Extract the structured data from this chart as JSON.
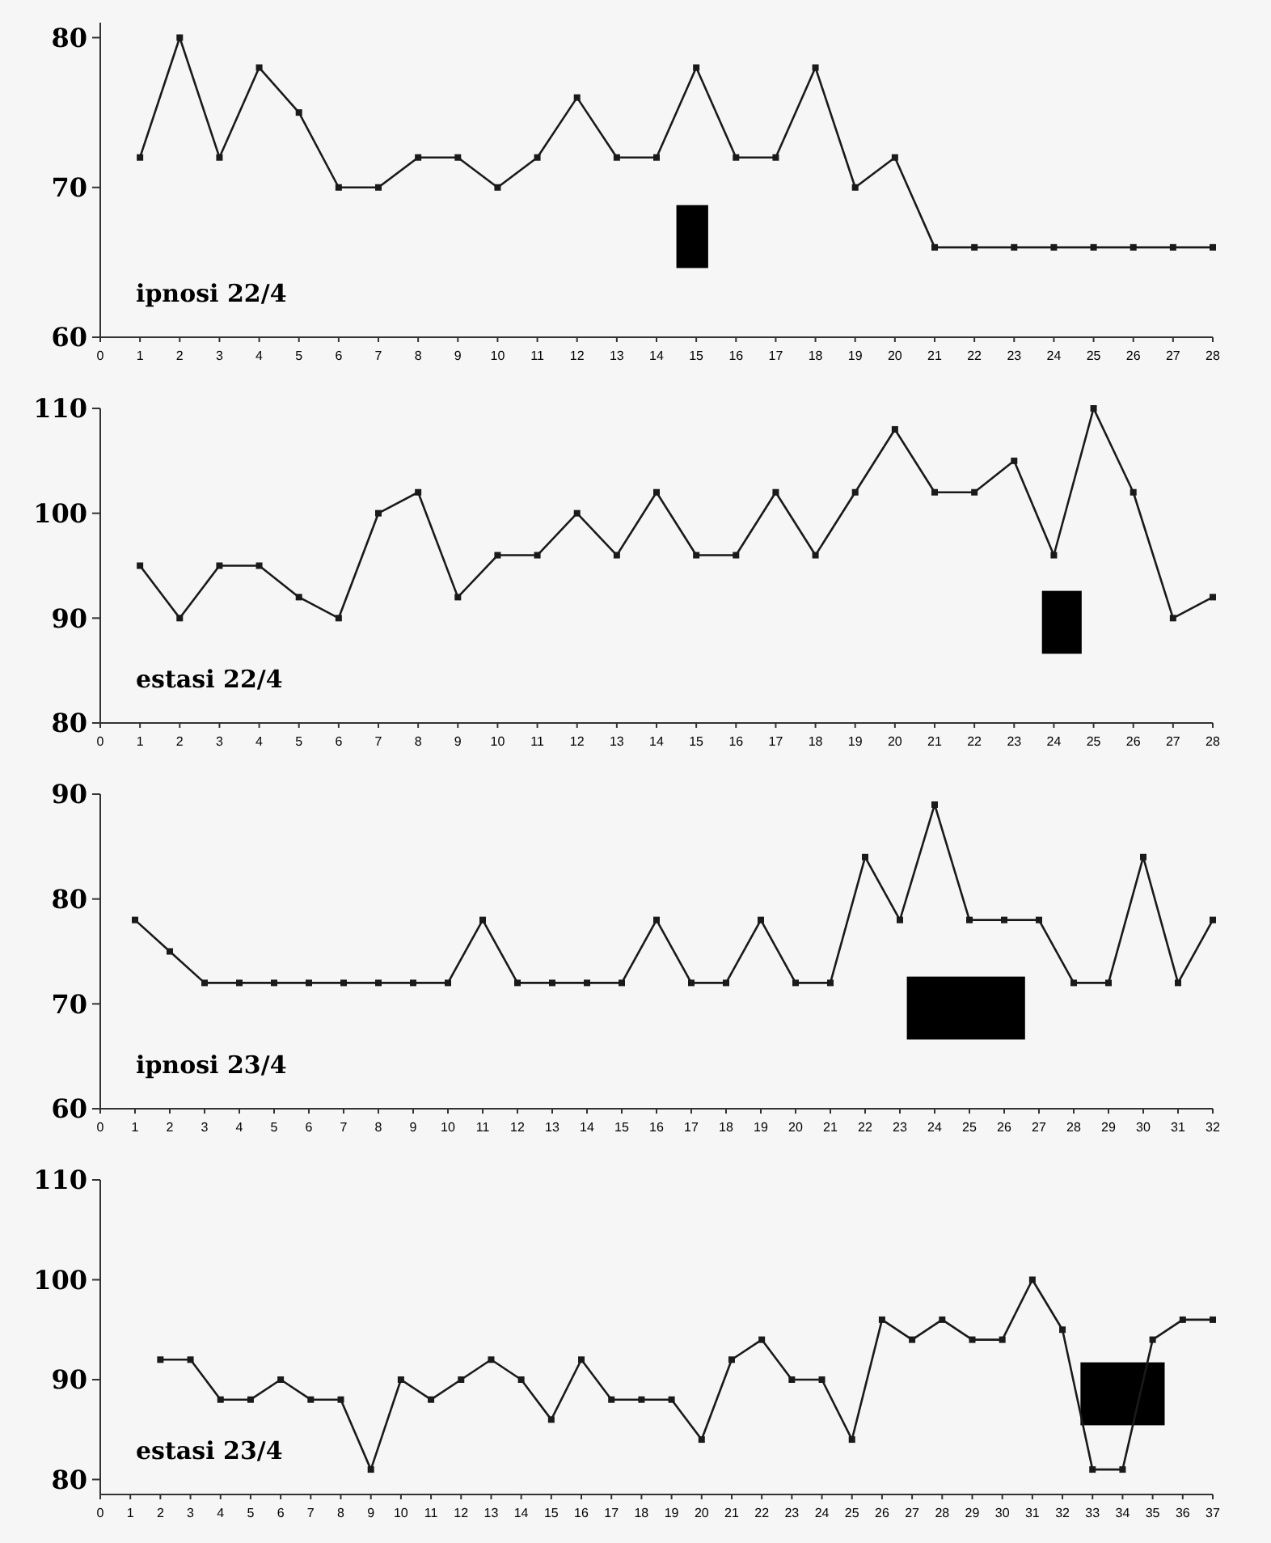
{
  "chart_data": [
    {
      "type": "line",
      "annotations": [
        "ipnosi 22/4"
      ],
      "x": [
        1,
        2,
        3,
        4,
        5,
        6,
        7,
        8,
        9,
        10,
        11,
        12,
        13,
        14,
        15,
        16,
        17,
        18,
        19,
        20,
        21,
        22,
        23,
        24,
        25,
        26,
        27,
        28
      ],
      "series": [
        {
          "color": "#1a1a1a",
          "values": [
            72,
            80,
            72,
            78,
            75,
            70,
            70,
            72,
            72,
            70,
            72,
            76,
            72,
            72,
            78,
            72,
            72,
            78,
            70,
            72,
            66,
            66,
            66,
            66,
            66,
            66,
            66,
            66
          ]
        }
      ],
      "xlim": [
        0,
        28
      ],
      "xticks": [
        0,
        1,
        2,
        3,
        4,
        5,
        6,
        7,
        8,
        9,
        10,
        11,
        12,
        13,
        14,
        15,
        16,
        17,
        18,
        19,
        20,
        21,
        22,
        23,
        24,
        25,
        26,
        27,
        28
      ],
      "ylim": [
        60,
        81
      ],
      "yticks": [
        60,
        70,
        80
      ],
      "marker": "square",
      "bands": [
        {
          "axis": "x",
          "from": 14.5,
          "to": 15.3,
          "color": "#000000"
        }
      ]
    },
    {
      "type": "line",
      "annotations": [
        "estasi 22/4"
      ],
      "x": [
        1,
        2,
        3,
        4,
        5,
        6,
        7,
        8,
        9,
        10,
        11,
        12,
        13,
        14,
        15,
        16,
        17,
        18,
        19,
        20,
        21,
        22,
        23,
        24,
        25,
        26,
        27,
        28
      ],
      "series": [
        {
          "color": "#1a1a1a",
          "values": [
            95,
            90,
            95,
            95,
            92,
            90,
            100,
            102,
            92,
            96,
            96,
            100,
            96,
            102,
            96,
            96,
            102,
            96,
            102,
            108,
            102,
            102,
            105,
            96,
            110,
            102,
            90,
            92
          ]
        }
      ],
      "xlim": [
        0,
        28
      ],
      "xticks": [
        0,
        1,
        2,
        3,
        4,
        5,
        6,
        7,
        8,
        9,
        10,
        11,
        12,
        13,
        14,
        15,
        16,
        17,
        18,
        19,
        20,
        21,
        22,
        23,
        24,
        25,
        26,
        27,
        28
      ],
      "ylim": [
        80,
        110
      ],
      "yticks": [
        80,
        90,
        100,
        110
      ],
      "marker": "square",
      "bands": [
        {
          "axis": "x",
          "from": 23.7,
          "to": 24.7,
          "color": "#000000"
        }
      ]
    },
    {
      "type": "line",
      "annotations": [
        "ipnosi 23/4"
      ],
      "x": [
        1,
        2,
        3,
        4,
        5,
        6,
        7,
        8,
        9,
        10,
        11,
        12,
        13,
        14,
        15,
        16,
        17,
        18,
        19,
        20,
        21,
        22,
        23,
        24,
        25,
        26,
        27,
        28,
        29,
        30,
        31,
        32
      ],
      "series": [
        {
          "color": "#1a1a1a",
          "values": [
            78,
            75,
            72,
            72,
            72,
            72,
            72,
            72,
            72,
            72,
            78,
            72,
            72,
            72,
            72,
            78,
            72,
            72,
            78,
            72,
            72,
            84,
            78,
            89,
            78,
            78,
            78,
            72,
            72,
            84,
            72,
            78
          ]
        }
      ],
      "xlim": [
        0,
        32
      ],
      "xticks": [
        0,
        1,
        2,
        3,
        4,
        5,
        6,
        7,
        8,
        9,
        10,
        11,
        12,
        13,
        14,
        15,
        16,
        17,
        18,
        19,
        20,
        21,
        22,
        23,
        24,
        25,
        26,
        27,
        28,
        29,
        30,
        31,
        32
      ],
      "ylim": [
        60,
        90
      ],
      "yticks": [
        60,
        70,
        80,
        90
      ],
      "marker": "square",
      "bands": [
        {
          "axis": "x",
          "from": 23.2,
          "to": 26.6,
          "color": "#000000"
        }
      ]
    },
    {
      "type": "line",
      "annotations": [
        "estasi 23/4"
      ],
      "x": [
        2,
        3,
        4,
        5,
        6,
        7,
        8,
        9,
        10,
        11,
        12,
        13,
        14,
        15,
        16,
        17,
        18,
        19,
        20,
        21,
        22,
        23,
        24,
        25,
        26,
        27,
        28,
        29,
        30,
        31,
        32,
        33,
        34,
        35,
        36,
        37
      ],
      "series": [
        {
          "color": "#1a1a1a",
          "values": [
            92,
            92,
            88,
            88,
            90,
            88,
            88,
            81,
            90,
            88,
            90,
            92,
            90,
            86,
            92,
            88,
            88,
            88,
            84,
            92,
            94,
            90,
            90,
            84,
            96,
            94,
            96,
            94,
            94,
            100,
            95,
            81,
            81,
            94,
            96,
            96
          ]
        }
      ],
      "xlim": [
        0,
        37
      ],
      "xticks": [
        0,
        1,
        2,
        3,
        4,
        5,
        6,
        7,
        8,
        9,
        10,
        11,
        12,
        13,
        14,
        15,
        16,
        17,
        18,
        19,
        20,
        21,
        22,
        23,
        24,
        25,
        26,
        27,
        28,
        29,
        30,
        31,
        32,
        33,
        34,
        35,
        36,
        37
      ],
      "ylim": [
        78.5,
        110
      ],
      "yticks": [
        80,
        90,
        100,
        110
      ],
      "marker": "square",
      "bands": [
        {
          "axis": "x",
          "from": 32.6,
          "to": 35.4,
          "color": "#000000"
        }
      ]
    }
  ]
}
